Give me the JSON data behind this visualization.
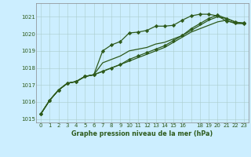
{
  "title": "Graphe pression niveau de la mer (hPa)",
  "background_color": "#cceeff",
  "grid_color": "#aacccc",
  "line_color": "#2d5a1b",
  "tick_color": "#2d5a1b",
  "xlim": [
    -0.5,
    23.5
  ],
  "ylim": [
    1014.8,
    1021.8
  ],
  "yticks": [
    1015,
    1016,
    1017,
    1018,
    1019,
    1020,
    1021
  ],
  "xticks": [
    0,
    1,
    2,
    3,
    4,
    5,
    6,
    7,
    8,
    9,
    10,
    11,
    12,
    13,
    14,
    15,
    16,
    18,
    19,
    20,
    21,
    22,
    23
  ],
  "series": [
    [
      1015.3,
      1016.1,
      1016.7,
      1017.1,
      1017.2,
      1017.5,
      1017.6,
      1019.0,
      1019.35,
      1019.55,
      1020.05,
      1020.1,
      1020.2,
      1020.45,
      1020.45,
      1020.5,
      1020.8,
      1021.05,
      1021.15,
      1021.15,
      1021.05,
      1020.75,
      1020.65,
      1020.65
    ],
    [
      1015.3,
      1016.1,
      1016.7,
      1017.1,
      1017.2,
      1017.5,
      1017.6,
      1018.3,
      1018.5,
      1018.7,
      1019.0,
      1019.1,
      1019.2,
      1019.4,
      1019.5,
      1019.7,
      1019.9,
      1020.2,
      1020.5,
      1020.8,
      1021.0,
      1020.9,
      1020.7,
      1020.6
    ],
    [
      1015.3,
      1016.1,
      1016.7,
      1017.1,
      1017.2,
      1017.5,
      1017.6,
      1017.8,
      1018.0,
      1018.2,
      1018.5,
      1018.7,
      1018.9,
      1019.1,
      1019.3,
      1019.6,
      1019.9,
      1020.3,
      1020.6,
      1020.9,
      1021.1,
      1020.9,
      1020.7,
      1020.6
    ],
    [
      1015.3,
      1016.1,
      1016.7,
      1017.1,
      1017.2,
      1017.5,
      1017.6,
      1017.8,
      1018.0,
      1018.2,
      1018.4,
      1018.6,
      1018.8,
      1019.0,
      1019.2,
      1019.5,
      1019.8,
      1020.1,
      1020.3,
      1020.5,
      1020.7,
      1020.8,
      1020.6,
      1020.6
    ]
  ],
  "marker_series": [
    0,
    2
  ],
  "marker": "D",
  "marker_size": 2.2,
  "linewidth": 0.9,
  "title_fontsize": 5.8,
  "tick_fontsize": 5.0
}
